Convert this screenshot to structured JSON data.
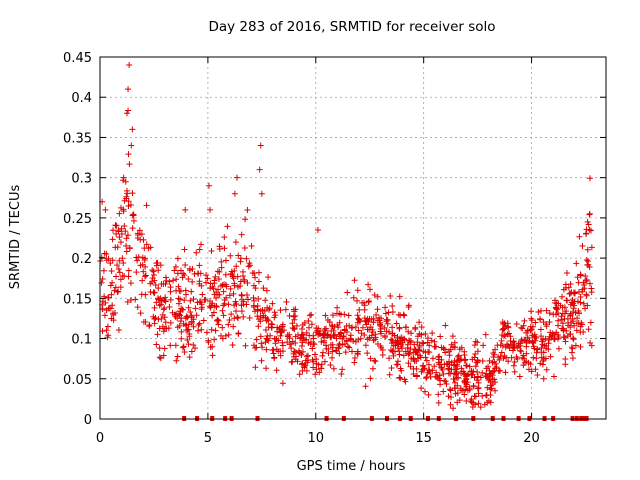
{
  "chart_data": {
    "type": "scatter",
    "title": "Day 283 of 2016, SRMTID for receiver solo",
    "xlabel": "GPS time / hours",
    "ylabel": "SRMTID / TECUs",
    "xlim": [
      0,
      23.45
    ],
    "ylim": [
      0,
      0.45
    ],
    "x_ticks": [
      0,
      5,
      10,
      15,
      20
    ],
    "x_tick_labels": [
      "0",
      "5",
      "10",
      "15",
      "20"
    ],
    "y_ticks": [
      0,
      0.05,
      0.1,
      0.15,
      0.2,
      0.25,
      0.3,
      0.35,
      0.4,
      0.45
    ],
    "y_tick_labels": [
      "0",
      "0.05",
      "0.1",
      "0.15",
      "0.2",
      "0.25",
      "0.3",
      "0.35",
      "0.4",
      "0.45"
    ],
    "grid": true,
    "marker": "+",
    "color": "#e00000",
    "envelope": {
      "description": "approximate median of the dense point cloud (x in hours, y in TECU)",
      "x": [
        0,
        0.5,
        1.0,
        1.3,
        1.7,
        2.2,
        3.0,
        4.0,
        5.0,
        6.0,
        7.0,
        7.5,
        8.5,
        10.0,
        11.0,
        12.0,
        13.0,
        14.0,
        15.0,
        16.0,
        17.0,
        18.0,
        18.6,
        19.5,
        20.5,
        21.5,
        22.3,
        22.7
      ],
      "median": [
        0.18,
        0.14,
        0.21,
        0.26,
        0.2,
        0.17,
        0.13,
        0.14,
        0.15,
        0.16,
        0.16,
        0.12,
        0.1,
        0.09,
        0.1,
        0.12,
        0.11,
        0.09,
        0.08,
        0.06,
        0.05,
        0.05,
        0.09,
        0.09,
        0.1,
        0.12,
        0.14,
        0.2
      ]
    },
    "notable_points": [
      {
        "x": 1.35,
        "y": 0.44
      },
      {
        "x": 1.3,
        "y": 0.41
      },
      {
        "x": 1.25,
        "y": 0.38
      },
      {
        "x": 1.5,
        "y": 0.36
      },
      {
        "x": 1.45,
        "y": 0.34
      },
      {
        "x": 1.1,
        "y": 0.3
      },
      {
        "x": 7.45,
        "y": 0.34
      },
      {
        "x": 7.4,
        "y": 0.31
      },
      {
        "x": 7.5,
        "y": 0.28
      },
      {
        "x": 6.35,
        "y": 0.3
      },
      {
        "x": 6.25,
        "y": 0.28
      },
      {
        "x": 5.05,
        "y": 0.29
      },
      {
        "x": 5.1,
        "y": 0.26
      },
      {
        "x": 0.1,
        "y": 0.27
      },
      {
        "x": 0.25,
        "y": 0.26
      },
      {
        "x": 3.95,
        "y": 0.26
      },
      {
        "x": 22.7,
        "y": 0.255
      },
      {
        "x": 22.6,
        "y": 0.245
      },
      {
        "x": 10.1,
        "y": 0.235
      },
      {
        "x": 15.7,
        "y": 0.02
      },
      {
        "x": 17.3,
        "y": 0.02
      }
    ],
    "zero_points_x": [
      3.9,
      4.5,
      5.2,
      5.8,
      6.1,
      7.3,
      10.5,
      11.3,
      12.6,
      13.3,
      13.9,
      14.4,
      15.2,
      15.7,
      16.5,
      17.3,
      18.2,
      18.7,
      19.4,
      19.9,
      20.6,
      21.0,
      21.9,
      22.1,
      22.3,
      22.4,
      22.55
    ]
  }
}
